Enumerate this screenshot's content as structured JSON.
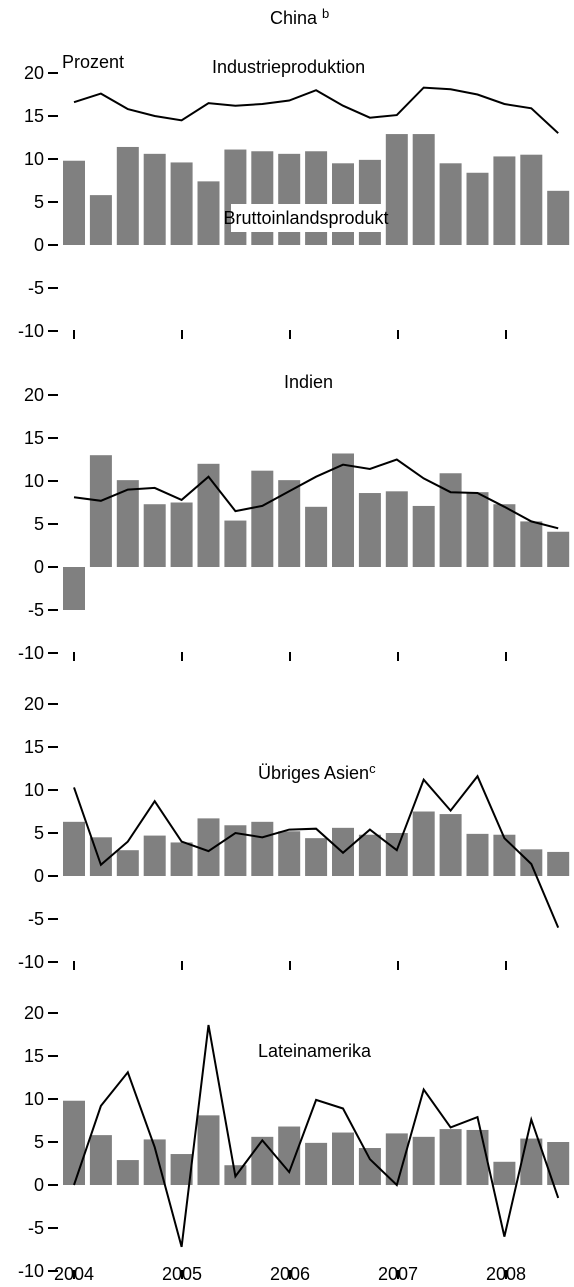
{
  "chart_data": [
    {
      "type": "bar",
      "title": "China",
      "title_note": "b",
      "unit_label": "Prozent",
      "ylim": [
        -10,
        20
      ],
      "yticks": [
        "20",
        "15",
        "10",
        "5",
        "0",
        "-5",
        "-10"
      ],
      "series": [
        {
          "name": "Bruttoinlandsprodukt",
          "kind": "bar",
          "color": "#808080",
          "values": [
            9.8,
            5.8,
            11.4,
            10.6,
            9.6,
            7.4,
            11.1,
            10.9,
            10.6,
            10.9,
            9.5,
            9.9,
            12.9,
            12.9,
            9.5,
            8.4,
            10.3,
            10.5,
            6.3
          ]
        },
        {
          "name": "Industrieproduktion",
          "kind": "line",
          "color": "#000000",
          "values": [
            16.6,
            17.6,
            15.8,
            15.0,
            14.5,
            16.5,
            16.2,
            16.4,
            16.8,
            18.0,
            16.2,
            14.8,
            15.1,
            18.3,
            18.1,
            17.5,
            16.4,
            15.9,
            13.0
          ]
        }
      ]
    },
    {
      "type": "bar",
      "title": "Indien",
      "ylim": [
        -10,
        20
      ],
      "yticks": [
        "20",
        "15",
        "10",
        "5",
        "0",
        "-5",
        "-10"
      ],
      "series": [
        {
          "name": "Bruttoinlandsprodukt",
          "kind": "bar",
          "color": "#808080",
          "values": [
            -5.0,
            13.0,
            10.1,
            7.3,
            7.5,
            12.0,
            5.4,
            11.2,
            10.1,
            7.0,
            13.2,
            8.6,
            8.8,
            7.1,
            10.9,
            8.7,
            7.3,
            5.3,
            4.1
          ]
        },
        {
          "name": "Industrieproduktion",
          "kind": "line",
          "color": "#000000",
          "values": [
            8.1,
            7.7,
            9.0,
            9.2,
            7.8,
            10.5,
            6.5,
            7.1,
            8.8,
            10.5,
            11.9,
            11.4,
            12.5,
            10.3,
            8.7,
            8.6,
            7.0,
            5.3,
            4.5
          ]
        }
      ]
    },
    {
      "type": "bar",
      "title": "Übriges Asien",
      "title_note": "c",
      "ylim": [
        -10,
        20
      ],
      "yticks": [
        "20",
        "15",
        "10",
        "5",
        "0",
        "-5",
        "-10"
      ],
      "series": [
        {
          "name": "Bruttoinlandsprodukt",
          "kind": "bar",
          "color": "#808080",
          "values": [
            6.3,
            4.5,
            3.0,
            4.7,
            3.9,
            6.7,
            5.9,
            6.3,
            5.2,
            4.4,
            5.6,
            4.8,
            5.0,
            7.5,
            7.2,
            4.9,
            4.8,
            3.1,
            2.8
          ]
        },
        {
          "name": "Industrieproduktion",
          "kind": "line",
          "color": "#000000",
          "values": [
            10.3,
            1.3,
            4.0,
            8.7,
            4.0,
            2.9,
            5.0,
            4.5,
            5.4,
            5.5,
            2.7,
            5.4,
            3.0,
            11.2,
            7.6,
            11.6,
            4.4,
            1.4,
            -6.0
          ]
        }
      ]
    },
    {
      "type": "bar",
      "title": "Lateinamerika",
      "ylim": [
        -10,
        20
      ],
      "yticks": [
        "20",
        "15",
        "10",
        "5",
        "0",
        "-5",
        "-10"
      ],
      "xticks": [
        "2004",
        "2005",
        "2006",
        "2007",
        "2008"
      ],
      "series": [
        {
          "name": "Bruttoinlandsprodukt",
          "kind": "bar",
          "color": "#808080",
          "values": [
            9.8,
            5.8,
            2.9,
            5.3,
            3.6,
            8.1,
            2.3,
            5.6,
            6.8,
            4.9,
            6.1,
            4.3,
            6.0,
            5.6,
            6.5,
            6.4,
            2.7,
            5.4,
            5.0
          ]
        },
        {
          "name": "Industrieproduktion",
          "kind": "line",
          "color": "#000000",
          "values": [
            0.0,
            9.2,
            13.1,
            4.4,
            -7.2,
            18.6,
            1.0,
            5.2,
            1.5,
            9.9,
            8.9,
            3.0,
            0.0,
            11.1,
            6.7,
            7.9,
            -6.0,
            7.6,
            -1.5
          ]
        }
      ]
    }
  ]
}
